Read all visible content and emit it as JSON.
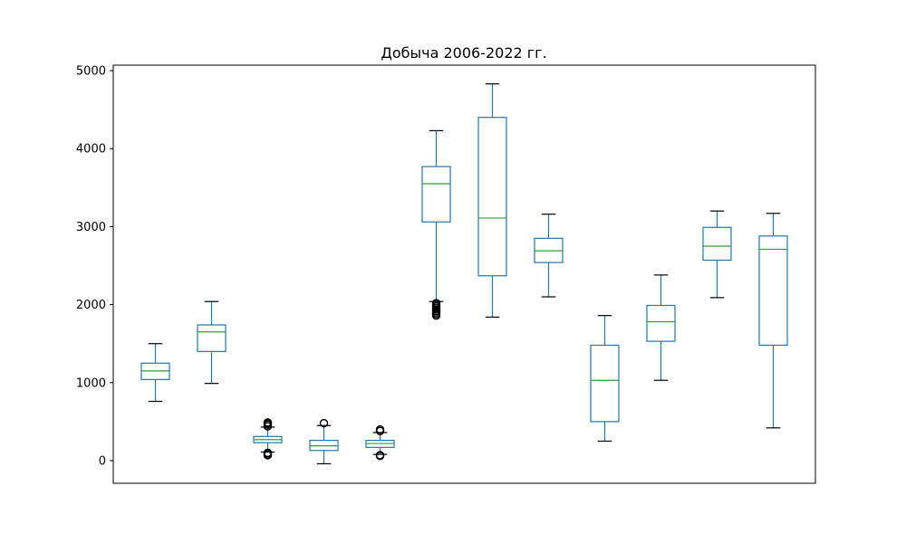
{
  "chart_data": {
    "type": "box",
    "title": "Добыча 2006-2022 гг.",
    "xlabel": "",
    "ylabel": "",
    "ylim": [
      -290,
      5070
    ],
    "yticks": [
      0,
      1000,
      2000,
      3000,
      4000,
      5000
    ],
    "grid": false,
    "box_color": "#1f77b4",
    "median_color": "#2ca02c",
    "whisker_color": "#1f77b4",
    "cap_color": "#000000",
    "series": [
      {
        "whislo": 760,
        "q1": 1040,
        "med": 1150,
        "q3": 1250,
        "whishi": 1500,
        "fliers": []
      },
      {
        "whislo": 990,
        "q1": 1400,
        "med": 1650,
        "q3": 1740,
        "whishi": 2040,
        "fliers": []
      },
      {
        "whislo": 110,
        "q1": 230,
        "med": 270,
        "q3": 310,
        "whishi": 430,
        "fliers": [
          70,
          80,
          95,
          100,
          440,
          460,
          475,
          490
        ]
      },
      {
        "whislo": -40,
        "q1": 130,
        "med": 190,
        "q3": 260,
        "whishi": 450,
        "fliers": [
          480
        ]
      },
      {
        "whislo": 80,
        "q1": 170,
        "med": 220,
        "q3": 260,
        "whishi": 360,
        "fliers": [
          60,
          70,
          380,
          400
        ]
      },
      {
        "whislo": 2040,
        "q1": 3060,
        "med": 3550,
        "q3": 3770,
        "whishi": 4230,
        "fliers": [
          1860,
          1880,
          1900,
          1920,
          1940,
          1960,
          1980,
          2000,
          2020
        ]
      },
      {
        "whislo": 1840,
        "q1": 2370,
        "med": 3110,
        "q3": 4400,
        "whishi": 4830,
        "fliers": []
      },
      {
        "whislo": 2100,
        "q1": 2540,
        "med": 2690,
        "q3": 2850,
        "whishi": 3160,
        "fliers": []
      },
      {
        "whislo": 250,
        "q1": 500,
        "med": 1030,
        "q3": 1480,
        "whishi": 1860,
        "fliers": []
      },
      {
        "whislo": 1030,
        "q1": 1530,
        "med": 1780,
        "q3": 1990,
        "whishi": 2380,
        "fliers": []
      },
      {
        "whislo": 2090,
        "q1": 2570,
        "med": 2750,
        "q3": 2990,
        "whishi": 3200,
        "fliers": []
      },
      {
        "whislo": 420,
        "q1": 1480,
        "med": 2710,
        "q3": 2880,
        "whishi": 3170,
        "fliers": []
      }
    ]
  }
}
